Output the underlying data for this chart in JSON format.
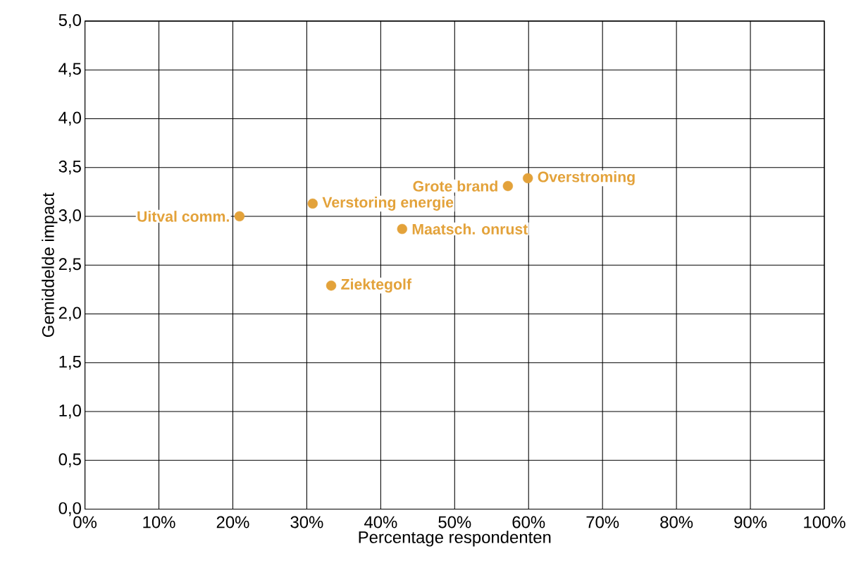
{
  "chart_data": {
    "type": "scatter",
    "xlabel": "Percentage respondenten",
    "ylabel": "Gemiddelde impact",
    "xlim": [
      0,
      100
    ],
    "ylim": [
      0,
      5
    ],
    "xticks": [
      {
        "value": 0,
        "label": "0%"
      },
      {
        "value": 10,
        "label": "10%"
      },
      {
        "value": 20,
        "label": "20%"
      },
      {
        "value": 30,
        "label": "30%"
      },
      {
        "value": 40,
        "label": "40%"
      },
      {
        "value": 50,
        "label": "50%"
      },
      {
        "value": 60,
        "label": "60%"
      },
      {
        "value": 70,
        "label": "70%"
      },
      {
        "value": 80,
        "label": "80%"
      },
      {
        "value": 90,
        "label": "90%"
      },
      {
        "value": 100,
        "label": "100%"
      }
    ],
    "yticks": [
      {
        "value": 0,
        "label": "0,0"
      },
      {
        "value": 0.5,
        "label": "0,5"
      },
      {
        "value": 1,
        "label": "1,0"
      },
      {
        "value": 1.5,
        "label": "1,5"
      },
      {
        "value": 2,
        "label": "2,0"
      },
      {
        "value": 2.5,
        "label": "2,5"
      },
      {
        "value": 3,
        "label": "3,0"
      },
      {
        "value": 3.5,
        "label": "3,5"
      },
      {
        "value": 4,
        "label": "4,0"
      },
      {
        "value": 4.5,
        "label": "4,5"
      },
      {
        "value": 5,
        "label": "5,0"
      }
    ],
    "grid": true,
    "marker": "circle",
    "legend": false,
    "series": [
      {
        "name": "Uitval comm.",
        "color": "#e3a23a",
        "x": [
          20.9
        ],
        "values": [
          3.0
        ]
      },
      {
        "name": "Verstoring energie",
        "color": "#e3a23a",
        "x": [
          30.8
        ],
        "values": [
          3.13
        ]
      },
      {
        "name": "Ziektegolf",
        "color": "#e3a23a",
        "x": [
          33.3
        ],
        "values": [
          2.29
        ]
      },
      {
        "name": "Maatsch. onrust",
        "color": "#e3a23a",
        "x": [
          42.9
        ],
        "values": [
          2.87
        ]
      },
      {
        "name": "Grote brand",
        "color": "#e3a23a",
        "x": [
          57.2
        ],
        "values": [
          3.31
        ]
      },
      {
        "name": "Overstroming",
        "color": "#e3a23a",
        "x": [
          59.9
        ],
        "values": [
          3.39
        ]
      }
    ]
  }
}
